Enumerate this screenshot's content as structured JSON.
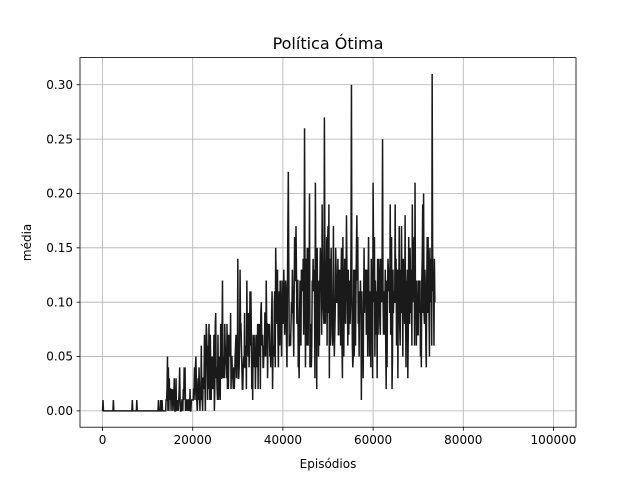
{
  "chart_data": {
    "type": "line",
    "title": "Política Ótima",
    "xlabel": "Episódios",
    "ylabel": "média",
    "xlim": [
      -5000,
      105000
    ],
    "ylim": [
      -0.015,
      0.325
    ],
    "xticks": [
      0,
      20000,
      40000,
      60000,
      80000,
      100000
    ],
    "xtick_labels": [
      "0",
      "20000",
      "40000",
      "60000",
      "80000",
      "100000"
    ],
    "yticks": [
      0.0,
      0.05,
      0.1,
      0.15,
      0.2,
      0.25,
      0.3
    ],
    "ytick_labels": [
      "0.00",
      "0.05",
      "0.10",
      "0.15",
      "0.20",
      "0.25",
      "0.30"
    ],
    "grid": true,
    "series": [
      {
        "color": "#1a1a1a",
        "x_start": 0,
        "x_step": 100,
        "values": [
          0,
          0.01,
          0,
          0,
          0,
          0,
          0,
          0,
          0,
          0,
          0,
          0,
          0,
          0,
          0,
          0,
          0,
          0,
          0,
          0,
          0,
          0,
          0,
          0,
          0.01,
          0,
          0,
          0,
          0,
          0,
          0,
          0,
          0,
          0,
          0,
          0,
          0,
          0,
          0,
          0,
          0,
          0,
          0,
          0,
          0,
          0,
          0,
          0,
          0,
          0,
          0,
          0,
          0,
          0,
          0,
          0,
          0,
          0,
          0,
          0,
          0,
          0,
          0,
          0,
          0,
          0,
          0.01,
          0,
          0,
          0,
          0,
          0,
          0,
          0,
          0,
          0,
          0.01,
          0,
          0,
          0,
          0,
          0,
          0,
          0,
          0,
          0,
          0,
          0,
          0,
          0,
          0,
          0,
          0,
          0,
          0,
          0,
          0,
          0,
          0,
          0,
          0,
          0,
          0,
          0,
          0,
          0,
          0,
          0,
          0,
          0,
          0,
          0,
          0,
          0,
          0,
          0,
          0,
          0,
          0,
          0,
          0,
          0,
          0,
          0,
          0.01,
          0,
          0,
          0,
          0,
          0.01,
          0,
          0,
          0.01,
          0,
          0,
          0,
          0,
          0,
          0,
          0,
          0,
          0.01,
          0.01,
          0.02,
          0.05,
          0,
          0.04,
          0,
          0.03,
          0.01,
          0.02,
          0.02,
          0,
          0.02,
          0.01,
          0.02,
          0,
          0.01,
          0.01,
          0.03,
          0,
          0,
          0,
          0.03,
          0,
          0.01,
          0,
          0.01,
          0,
          0.01,
          0.02,
          0.04,
          0.01,
          0,
          0,
          0,
          0.01,
          0.01,
          0,
          0.02,
          0.01,
          0.04,
          0.02,
          0.04,
          0,
          0.01,
          0.01,
          0,
          0.01,
          0.01,
          0,
          0.01,
          0.01,
          0,
          0.02,
          0,
          0,
          0.01,
          0.01,
          0.01,
          0.01,
          0.01,
          0.02,
          0.02,
          0.04,
          0.01,
          0.04,
          0.05,
          0.03,
          0.01,
          0,
          0.01,
          0.03,
          0.01,
          0.04,
          0.02,
          0,
          0.02,
          0.01,
          0.06,
          0.02,
          0.01,
          0,
          0.03,
          0.03,
          0.02,
          0.07,
          0.03,
          0,
          0.05,
          0.08,
          0.07,
          0.05,
          0.01,
          0.06,
          0.02,
          0.08,
          0.05,
          0.01,
          0.07,
          0.04,
          0.01,
          0.05,
          0.02,
          0.05,
          0.02,
          0.03,
          0.07,
          0,
          0.02,
          0.08,
          0.09,
          0.03,
          0.04,
          0.02,
          0.01,
          0.07,
          0.01,
          0.02,
          0.05,
          0.04,
          0.01,
          0.08,
          0.03,
          0.03,
          0.07,
          0.12,
          0.03,
          0.04,
          0.05,
          0.03,
          0.08,
          0.06,
          0.05,
          0.04,
          0.03,
          0.08,
          0.02,
          0.07,
          0.02,
          0.05,
          0.07,
          0.06,
          0.05,
          0.09,
          0.02,
          0.05,
          0.05,
          0.03,
          0.03,
          0.02,
          0.04,
          0.02,
          0.03,
          0.05,
          0.06,
          0.07,
          0.03,
          0.05,
          0.04,
          0.14,
          0.03,
          0.03,
          0.04,
          0.06,
          0.13,
          0.08,
          0.08,
          0.06,
          0.04,
          0.02,
          0.02,
          0.04,
          0.05,
          0.04,
          0.09,
          0.04,
          0.04,
          0.06,
          0.02,
          0.12,
          0.07,
          0.06,
          0.05,
          0.09,
          0.04,
          0.06,
          0.11,
          0.06,
          0.11,
          0.07,
          0.02,
          0.05,
          0.01,
          0.07,
          0.06,
          0.04,
          0.06,
          0.07,
          0.02,
          0.05,
          0.04,
          0.07,
          0.04,
          0.08,
          0.02,
          0.08,
          0.05,
          0.07,
          0.08,
          0.02,
          0.09,
          0.1,
          0.07,
          0.06,
          0.07,
          0.04,
          0.04,
          0.06,
          0.05,
          0.09,
          0.09,
          0.05,
          0.12,
          0.08,
          0.08,
          0.03,
          0.07,
          0.08,
          0.07,
          0.08,
          0.05,
          0.06,
          0.04,
          0.06,
          0.09,
          0.11,
          0.02,
          0.05,
          0.06,
          0.05,
          0.1,
          0.11,
          0.04,
          0.15,
          0.12,
          0.09,
          0.08,
          0.13,
          0.07,
          0.04,
          0.1,
          0.11,
          0.06,
          0.12,
          0.09,
          0.08,
          0.05,
          0.12,
          0.09,
          0.08,
          0.09,
          0.13,
          0.1,
          0.07,
          0.09,
          0.12,
          0.11,
          0.06,
          0.04,
          0.11,
          0.17,
          0.22,
          0.14,
          0.06,
          0.06,
          0.07,
          0.06,
          0.08,
          0.1,
          0.09,
          0.13,
          0.1,
          0.08,
          0.05,
          0.11,
          0.16,
          0.12,
          0.12,
          0.17,
          0.13,
          0.08,
          0.12,
          0.12,
          0.04,
          0.05,
          0.03,
          0.09,
          0.12,
          0.09,
          0.06,
          0.13,
          0.12,
          0.13,
          0.11,
          0.14,
          0.07,
          0.12,
          0.26,
          0.13,
          0.04,
          0.09,
          0.14,
          0.06,
          0.15,
          0.11,
          0.06,
          0.15,
          0.11,
          0.2,
          0.04,
          0.06,
          0.08,
          0.04,
          0.06,
          0.12,
          0.11,
          0.14,
          0.11,
          0.13,
          0.12,
          0.03,
          0.21,
          0.13,
          0.12,
          0.02,
          0.15,
          0.09,
          0.11,
          0.05,
          0.12,
          0.06,
          0.12,
          0.15,
          0.13,
          0.12,
          0.07,
          0.19,
          0.13,
          0.1,
          0.09,
          0.08,
          0.27,
          0.16,
          0.08,
          0.13,
          0.09,
          0.16,
          0.06,
          0.15,
          0.17,
          0.09,
          0.19,
          0.03,
          0.14,
          0.06,
          0.11,
          0.15,
          0.1,
          0.07,
          0.06,
          0.08,
          0.17,
          0.09,
          0.05,
          0.07,
          0.09,
          0.15,
          0.13,
          0.1,
          0.1,
          0.11,
          0.14,
          0.07,
          0.07,
          0.13,
          0.1,
          0.13,
          0.06,
          0.13,
          0.15,
          0.06,
          0.03,
          0.16,
          0.06,
          0.05,
          0.11,
          0.14,
          0.13,
          0.08,
          0.12,
          0.18,
          0.13,
          0.1,
          0.06,
          0.13,
          0.07,
          0.1,
          0.12,
          0.08,
          0.1,
          0.15,
          0.3,
          0.11,
          0.06,
          0.04,
          0.05,
          0.13,
          0.05,
          0.07,
          0.13,
          0.06,
          0.11,
          0.15,
          0.18,
          0.12,
          0.16,
          0.08,
          0.11,
          0.05,
          0.11,
          0.09,
          0.12,
          0.1,
          0.01,
          0.11,
          0.07,
          0.08,
          0.03,
          0.1,
          0.15,
          0.09,
          0.13,
          0.12,
          0.13,
          0.07,
          0.09,
          0.13,
          0.05,
          0.12,
          0.16,
          0.09,
          0.05,
          0.11,
          0.09,
          0.04,
          0.14,
          0.08,
          0.12,
          0.03,
          0.21,
          0.15,
          0.1,
          0.16,
          0.05,
          0.12,
          0.1,
          0.07,
          0.11,
          0.03,
          0.14,
          0.07,
          0.11,
          0.14,
          0.12,
          0.08,
          0.07,
          0.14,
          0.11,
          0.1,
          0.14,
          0.25,
          0.11,
          0.07,
          0.11,
          0.07,
          0.09,
          0.13,
          0.06,
          0.02,
          0.12,
          0.04,
          0.11,
          0.14,
          0.13,
          0.11,
          0.13,
          0.09,
          0.19,
          0.07,
          0.15,
          0.16,
          0.02,
          0.05,
          0.13,
          0.09,
          0.11,
          0.1,
          0.1,
          0.19,
          0.1,
          0.14,
          0.06,
          0.09,
          0.13,
          0.03,
          0.12,
          0.11,
          0.17,
          0.08,
          0.06,
          0.13,
          0.09,
          0.17,
          0.12,
          0.1,
          0.05,
          0.14,
          0.11,
          0.11,
          0.08,
          0.18,
          0.09,
          0.04,
          0.12,
          0.11,
          0.13,
          0.03,
          0.07,
          0.16,
          0.12,
          0.08,
          0.15,
          0.12,
          0.09,
          0.13,
          0.06,
          0.19,
          0.1,
          0.12,
          0.14,
          0.16,
          0.06,
          0.21,
          0.09,
          0.11,
          0.06,
          0.12,
          0.08,
          0.07,
          0.07,
          0.12,
          0.11,
          0.09,
          0.12,
          0.05,
          0.09,
          0.04,
          0.12,
          0.14,
          0.19,
          0.09,
          0.2,
          0.09,
          0.08,
          0.13,
          0.11,
          0.06,
          0.04,
          0.12,
          0.16,
          0.09,
          0.16,
          0.12,
          0.09,
          0.05,
          0.15,
          0.1,
          0.12,
          0.14,
          0.06,
          0.31,
          0.15,
          0.11,
          0.12,
          0.06,
          0.14,
          0.1
        ]
      }
    ]
  }
}
